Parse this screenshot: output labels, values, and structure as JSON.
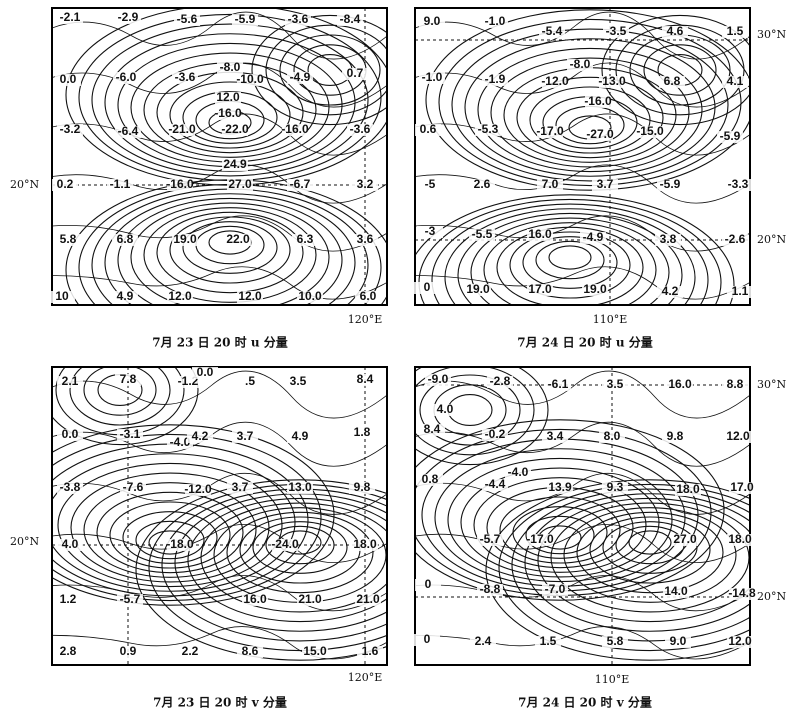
{
  "panels": [
    {
      "caption": "7月 23 日 20 时 u 分量",
      "axis_labels": [
        "20°N",
        "120°E"
      ],
      "contour_labels": [
        "-2.1",
        "-2.9",
        "-5.6",
        "-5.9",
        "-3.6",
        "-8.4",
        "0.0",
        "-6.0",
        "-3.6",
        "-8.0",
        "-10.0",
        "-4.9",
        "0.7",
        "12.0",
        "-16.0",
        "-3.2",
        "-6.4",
        "-21.0",
        "-22.0",
        "-16.0",
        "-3.6",
        "24.9",
        "0.2",
        "-1.1",
        "-16.0",
        "27.0",
        "-6.7",
        "3.2",
        "5.8",
        "6.8",
        "19.0",
        "22.0",
        "6.3",
        "3.6",
        "10",
        "4.9",
        "12.0",
        "12.0",
        "10.0",
        "6.0"
      ]
    },
    {
      "caption": "7月 24 日 20 时 u 分量",
      "axis_labels": [
        "30°N",
        "20°N",
        "110°E"
      ],
      "contour_labels": [
        "9.0",
        "-1.0",
        "-5.4",
        "-3.5",
        "4.6",
        "1.5",
        "-1.0",
        "-1.9",
        "-8.0",
        "-12.0",
        "-13.0",
        "6.8",
        "4.1",
        "-16.0",
        "0.6",
        "-5.3",
        "-17.0",
        "-27.0",
        "-15.0",
        "-5.9",
        "-5",
        "2.6",
        "7.0",
        "3.7",
        "-5.9",
        "-3.3",
        "-3",
        "-5.5",
        "16.0",
        "-4.9",
        "3.8",
        "-2.6",
        "0",
        "19.0",
        "17.0",
        "19.0",
        "4.2",
        "1.1"
      ]
    },
    {
      "caption": "7月 23 日 20 时 v 分量",
      "axis_labels": [
        "20°N",
        "120°E"
      ],
      "contour_labels": [
        "2.1",
        "7.8",
        "-1.2",
        "0.0",
        ".5",
        "3.5",
        "8.4",
        "0.0",
        "-3.1",
        "-4.0",
        "4.2",
        "3.7",
        "4.9",
        "1.8",
        "-3.8",
        "-7.6",
        "-12.0",
        "3.7",
        "13.0",
        "9.8",
        "4.0",
        "-18.0",
        "-24.0",
        "18.0",
        "1.2",
        "-5.7",
        "16.0",
        "21.0",
        "21.0",
        "2.8",
        "0.9",
        "2.2",
        "8.6",
        "15.0",
        "1.6"
      ]
    },
    {
      "caption": "7月 24 日 20 时 v 分量",
      "axis_labels": [
        "30°N",
        "20°N",
        "110°E"
      ],
      "contour_labels": [
        "-9.0",
        "-2.8",
        "-6.1",
        "3.5",
        "16.0",
        "8.8",
        "4.0",
        "8.4",
        "-0.2",
        "3.4",
        "8.0",
        "9.8",
        "12.0",
        "0.8",
        "-4.4",
        "-4.0",
        "13.9",
        "9.3",
        "18.0",
        "17.0",
        "-5.7",
        "-17.0",
        "27.0",
        "18.0",
        "0",
        "-8.8",
        "-7.0",
        "14.0",
        "-14.8",
        "0",
        "2.4",
        "1.5",
        "5.8",
        "9.0",
        "12.0"
      ]
    }
  ]
}
